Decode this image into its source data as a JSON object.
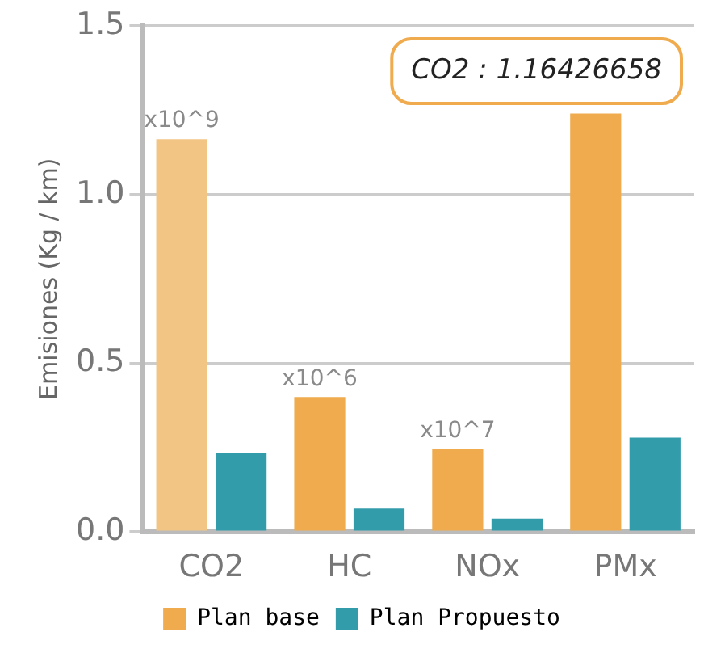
{
  "chart_data": {
    "type": "bar",
    "ylabel": "Emisiones (Kg / km)",
    "categories": [
      "CO2",
      "HC",
      "NOx",
      "PMx"
    ],
    "series": [
      {
        "name": "Plan base",
        "color": "#efab4d",
        "colors": [
          "#f3c585",
          "#efab4d",
          "#efab4d",
          "#efab4d"
        ],
        "values": [
          1.16426658,
          0.4,
          0.245,
          1.24
        ]
      },
      {
        "name": "Plan Propuesto",
        "color": "#339cab",
        "values": [
          0.235,
          0.07,
          0.04,
          0.28
        ]
      }
    ],
    "ylim": [
      0,
      1.5
    ],
    "yticks": [
      {
        "value": 0,
        "label": "0.0"
      },
      {
        "value": 0.5,
        "label": "0.5"
      },
      {
        "value": 1,
        "label": "1.0"
      },
      {
        "value": 1.5,
        "label": "1.5"
      }
    ],
    "grid": "y",
    "legend": "bottom",
    "annotations": [
      {
        "text": "x10^9",
        "x": "CO2",
        "y": 1.16426658
      },
      {
        "text": "x10^6",
        "x": "HC",
        "y": 0.4
      },
      {
        "text": "x10^7",
        "x": "NOx",
        "y": 0.245
      },
      "CO2 : 1.16426658"
    ]
  }
}
